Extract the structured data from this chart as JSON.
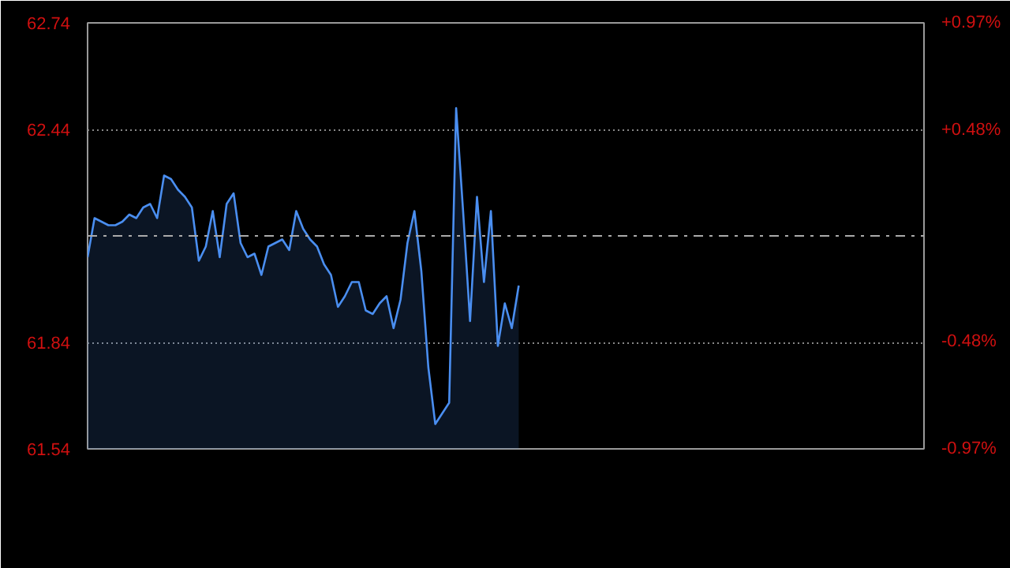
{
  "chart_data": {
    "type": "area",
    "categories": [
      null,
      null,
      null,
      null,
      null,
      null,
      null,
      null,
      null,
      null,
      null,
      null,
      null,
      null,
      null,
      null,
      null,
      null,
      null,
      null,
      null,
      null,
      null,
      null,
      null,
      null,
      null,
      null,
      null,
      null,
      null,
      null,
      null,
      null,
      null,
      null,
      null,
      null,
      null,
      null,
      null,
      null,
      null,
      null,
      null,
      null,
      null,
      null,
      null,
      null,
      null,
      null,
      null,
      null,
      null,
      null,
      null,
      null,
      null,
      null,
      null,
      null,
      null
    ],
    "series": [
      {
        "color": "#4a8ef0",
        "values": [
          62.08,
          62.19,
          62.18,
          62.17,
          62.17,
          62.18,
          62.2,
          62.19,
          62.22,
          62.23,
          62.19,
          62.31,
          62.3,
          62.27,
          62.25,
          62.22,
          62.07,
          62.11,
          62.21,
          62.08,
          62.23,
          62.26,
          62.12,
          62.08,
          62.09,
          62.03,
          62.11,
          62.12,
          62.13,
          62.1,
          62.21,
          62.16,
          62.13,
          62.11,
          62.06,
          62.03,
          61.94,
          61.97,
          62.01,
          62.01,
          61.93,
          61.92,
          61.95,
          61.97,
          61.88,
          61.96,
          62.12,
          62.21,
          62.04,
          61.77,
          61.61,
          61.64,
          61.67,
          62.5,
          62.21,
          61.9,
          62.25,
          62.01,
          62.21,
          61.83,
          61.95,
          61.88,
          62.0
        ]
      }
    ],
    "ylim": [
      61.54,
      62.74
    ],
    "yticks": [
      61.54,
      61.84,
      62.44,
      62.74
    ],
    "y2lim": [
      -0.97,
      0.97
    ],
    "y2ticks": [
      {
        "value": -0.97,
        "label": "-0.97%"
      },
      {
        "value": -0.48,
        "label": "-0.48%"
      },
      {
        "value": 0.48,
        "label": "+0.48%"
      },
      {
        "value": 0.97,
        "label": "+0.97%"
      }
    ],
    "ref_lines": [
      {
        "axis": "y",
        "value": 62.14,
        "label": null,
        "color": "#aaaaaa",
        "line_style": "dashdot"
      }
    ],
    "grid": "y",
    "tick_labels": "y",
    "marker": "none",
    "line_style": "solid"
  }
}
